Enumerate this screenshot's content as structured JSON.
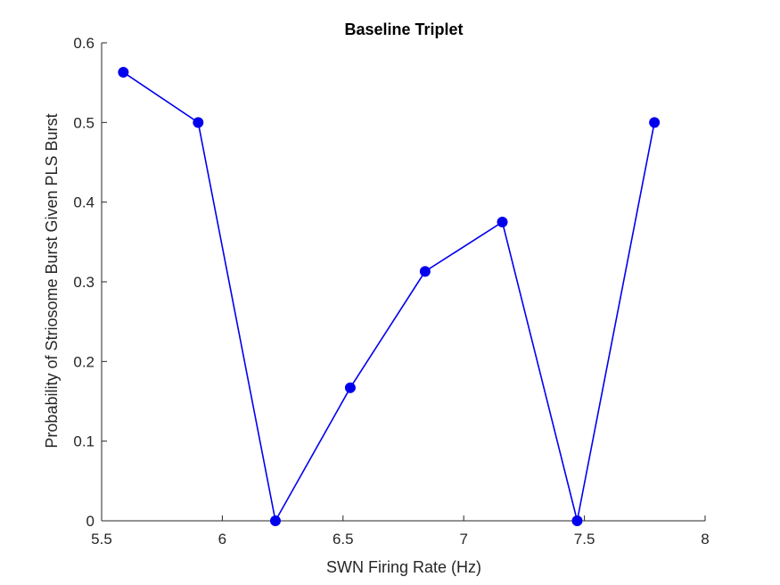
{
  "chart_data": {
    "type": "line",
    "title": "Baseline Triplet",
    "xlabel": "SWN Firing Rate (Hz)",
    "ylabel": "Probability of Striosome Burst Given PLS Burst",
    "xlim": [
      5.5,
      8
    ],
    "ylim": [
      0,
      0.6
    ],
    "xticks": [
      "5.5",
      "6",
      "6.5",
      "7",
      "7.5",
      "8"
    ],
    "yticks": [
      "0",
      "0.1",
      "0.2",
      "0.3",
      "0.4",
      "0.5",
      "0.6"
    ],
    "grid": false,
    "series": [
      {
        "color": "#0000ee",
        "marker": "circle",
        "x": [
          5.59,
          5.9,
          6.22,
          6.53,
          6.84,
          7.16,
          7.47,
          7.79
        ],
        "y": [
          0.563,
          0.5,
          0.0,
          0.167,
          0.313,
          0.375,
          0.0,
          0.5
        ]
      }
    ]
  }
}
